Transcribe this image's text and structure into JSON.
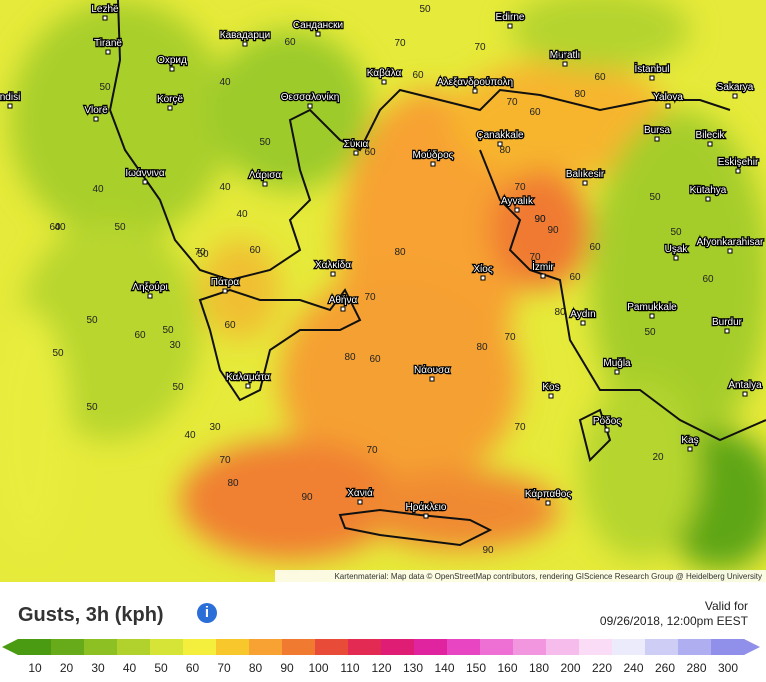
{
  "title": "Gusts, 3h (kph)",
  "valid_label": "Valid for",
  "valid_time": "09/26/2018, 12:00pm EEST",
  "attribution": "Kartenmaterial: Map data © OpenStreetMap contributors, rendering GIScience Research Group @ Heidelberg University",
  "cities": [
    "Lezhë",
    "Tiranë",
    "Охрид",
    "Кавадарци",
    "Сандански",
    "Edirne",
    "Muratlı",
    "İstanbul",
    "Sakarya",
    "Yalova",
    "Korçë",
    "Θεσσαλονίκη",
    "Καβάλα",
    "Αλεξανδρούπολη",
    "Çanakkale",
    "Bursa",
    "Bilecik",
    "Vlorë",
    "ndisi",
    "Σύκια",
    "Μούδρος",
    "Balıkesir",
    "Eskişehir",
    "Ιωάννινα",
    "Λάρισα",
    "Ayvalık",
    "Kütahya",
    "Afyonkarahisar",
    "Uşak",
    "Χαλκίδα",
    "Χίος",
    "İzmir",
    "Πάτρα",
    "Ληξούρι",
    "Αθήνα",
    "Aydın",
    "Pamukkale",
    "Burdur",
    "Νάουσα",
    "Καλαμάτα",
    "Muğla",
    "Kos",
    "Antalya",
    "Ρόδος",
    "Kaş",
    "Χανιά",
    "Ηράκλειο",
    "Κάρπαθος"
  ],
  "contour_labels": [
    50,
    70,
    60,
    40,
    50,
    60,
    70,
    70,
    60,
    50,
    40,
    40,
    50,
    60,
    70,
    80,
    60,
    80,
    70,
    90,
    40,
    60,
    50,
    60,
    80,
    50,
    60,
    50,
    30,
    50,
    40,
    50,
    70,
    90,
    80,
    80,
    70,
    50,
    40,
    50,
    50,
    60,
    70,
    80,
    90,
    60,
    70,
    20,
    30,
    70,
    60,
    90,
    60,
    90,
    80,
    70,
    60,
    50,
    60
  ],
  "legend": {
    "colors": [
      "#4a9a12",
      "#67ab1b",
      "#8cc023",
      "#b1d22c",
      "#d5e436",
      "#f4ef3c",
      "#f7c72c",
      "#f7a232",
      "#f07a30",
      "#e84c38",
      "#e22a52",
      "#e01d74",
      "#e0239e",
      "#e845c2",
      "#ee70d4",
      "#f296e0",
      "#f6bcec",
      "#fadcf6",
      "#ecebfb",
      "#cdcdf5",
      "#aeaef0",
      "#9090ea"
    ],
    "ticks": [
      10,
      20,
      30,
      40,
      50,
      60,
      70,
      80,
      90,
      100,
      110,
      120,
      130,
      140,
      150,
      160,
      180,
      200,
      220,
      240,
      260,
      280,
      300
    ]
  }
}
